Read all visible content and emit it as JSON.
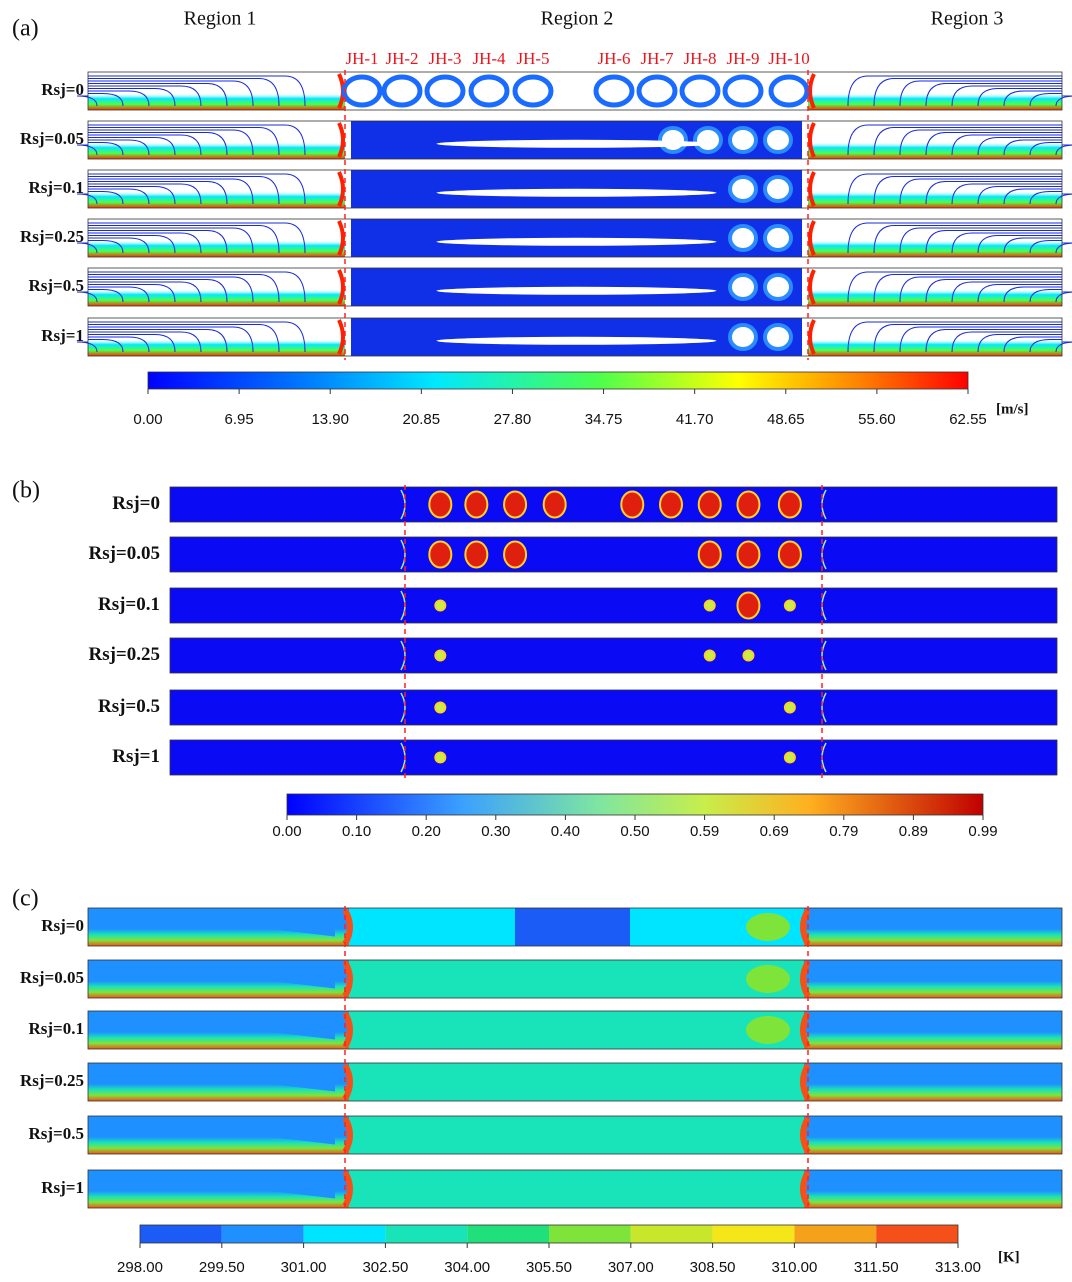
{
  "panels": [
    {
      "label": "(a)",
      "regions": [
        "Region 1",
        "Region 2",
        "Region 3"
      ],
      "jets": [
        "JH-1",
        "JH-2",
        "JH-3",
        "JH-4",
        "JH-5",
        "JH-6",
        "JH-7",
        "JH-8",
        "JH-9",
        "JH-10"
      ],
      "rows": [
        "Rsj=0",
        "Rsj=0.05",
        "Rsj=0.1",
        "Rsj=0.25",
        "Rsj=0.5",
        "Rsj=1"
      ],
      "colorbar": {
        "ticks": [
          "0.00",
          "6.95",
          "13.90",
          "20.85",
          "27.80",
          "34.75",
          "41.70",
          "48.65",
          "55.60",
          "62.55"
        ],
        "unit": "[m/s]"
      }
    },
    {
      "label": "(b)",
      "rows": [
        "Rsj=0",
        "Rsj=0.05",
        "Rsj=0.1",
        "Rsj=0.25",
        "Rsj=0.5",
        "Rsj=1"
      ],
      "colorbar": {
        "ticks": [
          "0.00",
          "0.10",
          "0.20",
          "0.30",
          "0.40",
          "0.50",
          "0.59",
          "0.69",
          "0.79",
          "0.89",
          "0.99"
        ]
      }
    },
    {
      "label": "(c)",
      "rows": [
        "Rsj=0",
        "Rsj=0.05",
        "Rsj=0.1",
        "Rsj=0.25",
        "Rsj=0.5",
        "Rsj=1"
      ],
      "colorbar": {
        "ticks": [
          "298.00",
          "299.50",
          "301.00",
          "302.50",
          "304.00",
          "305.50",
          "307.00",
          "308.50",
          "310.00",
          "311.50",
          "313.00"
        ],
        "unit": "[K]"
      }
    }
  ]
}
